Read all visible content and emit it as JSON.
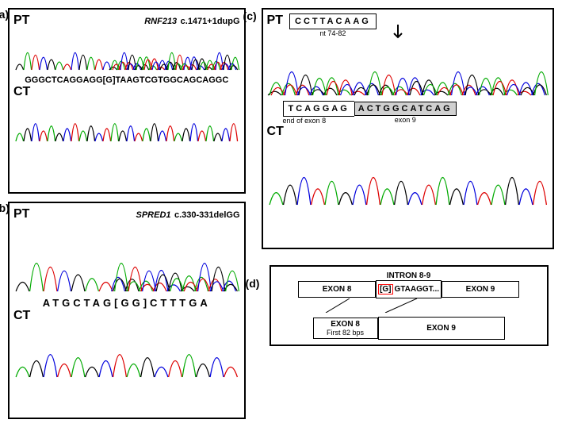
{
  "panels": {
    "a": {
      "label": "(a)",
      "gene": "RNF213",
      "variant": "c.1471+1dupG",
      "pt": "PT",
      "ct": "CT",
      "sequence": "GGGCTCAGGAGG[G]TAAGTCGTGGCAGCAGGC"
    },
    "b": {
      "label": "(b)",
      "gene": "SPRED1",
      "variant": "c.330-331delGG",
      "pt": "PT",
      "ct": "CT",
      "sequence": "ATGCTAG[GG]CTTTGA"
    },
    "c": {
      "label": "(c)",
      "pt": "PT",
      "ct": "CT",
      "box1_seq": "CCTTACAAG",
      "box1_label": "nt 74-82",
      "box2_left": "TCAGGAG",
      "box2_right": "ACTGGCATCAG",
      "box2_left_label": "end of exon 8",
      "box2_right_label": "exon 9"
    },
    "d": {
      "label": "(d)",
      "intron": "INTRON 8-9",
      "exon8": "EXON 8",
      "insert": "[G]",
      "intron_seq": "GTAAGGT...",
      "exon9": "EXON 9",
      "exon8_first": "EXON 8",
      "exon8_sub": "First 82 bps",
      "exon9_big": "EXON 9"
    }
  },
  "colors": {
    "trace_a": "#00aa00",
    "trace_t": "#dd0000",
    "trace_c": "#0000dd",
    "trace_g": "#000000",
    "border": "#000000",
    "highlight": "#ff0000",
    "gray": "#d0d0d0"
  },
  "chromatogram_style": {
    "line_width": 1.5,
    "peak_height_range": [
      10,
      50
    ],
    "num_peaks_narrow": 28,
    "num_peaks_wide": 16
  }
}
